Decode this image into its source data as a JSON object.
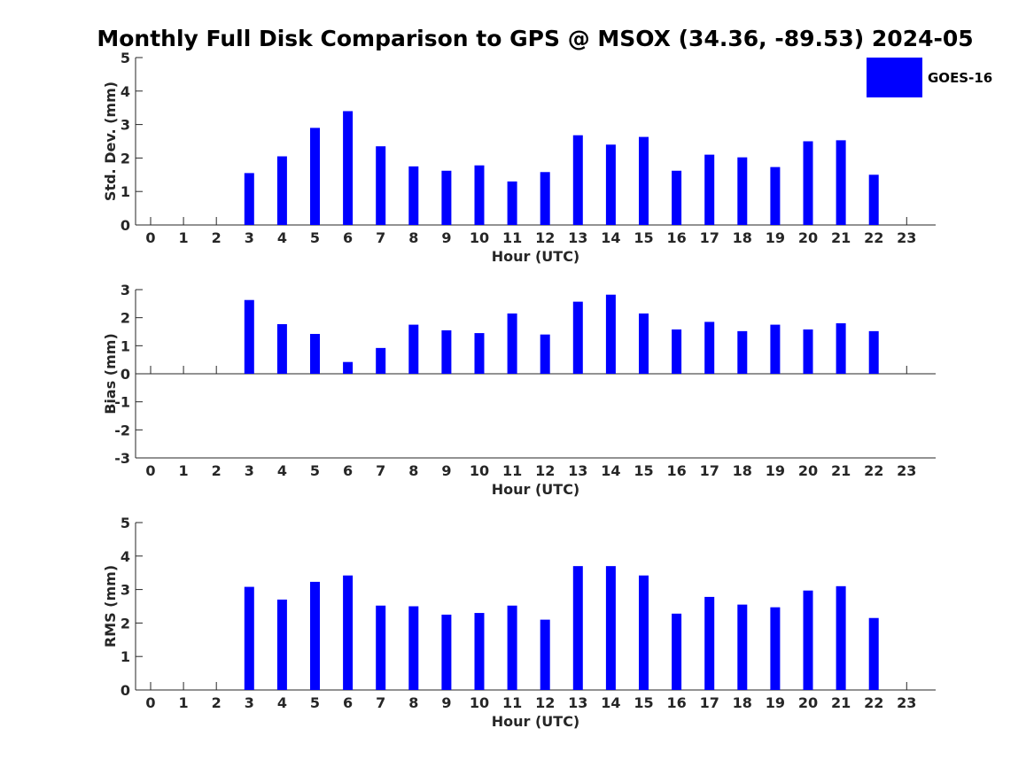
{
  "title": "Monthly Full Disk Comparison to GPS @ MSOX (34.36, -89.53) 2024-05",
  "legend": {
    "label": "GOES-16",
    "color": "#0000ff",
    "placement": "top-right"
  },
  "chart_data": [
    {
      "type": "bar",
      "name": "std",
      "ylabel": "Std. Dev. (mm)",
      "xlabel": "Hour (UTC)",
      "ylim": [
        0,
        5
      ],
      "yticks": [
        "0",
        "1",
        "2",
        "3",
        "4",
        "5"
      ],
      "categories": [
        "0",
        "1",
        "2",
        "3",
        "4",
        "5",
        "6",
        "7",
        "8",
        "9",
        "10",
        "11",
        "12",
        "13",
        "14",
        "15",
        "16",
        "17",
        "18",
        "19",
        "20",
        "21",
        "22",
        "23"
      ],
      "series": [
        {
          "name": "GOES-16",
          "values": [
            null,
            null,
            null,
            1.55,
            2.05,
            2.9,
            3.4,
            2.35,
            1.75,
            1.62,
            1.78,
            1.3,
            1.58,
            2.68,
            2.4,
            2.63,
            1.62,
            2.1,
            2.02,
            1.73,
            2.5,
            2.53,
            1.5,
            null
          ]
        }
      ],
      "grid": false
    },
    {
      "type": "bar",
      "name": "bias",
      "ylabel": "Bias (mm)",
      "xlabel": "Hour (UTC)",
      "ylim": [
        -3,
        3
      ],
      "yticks": [
        "-3",
        "-2",
        "-1",
        "0",
        "1",
        "2",
        "3"
      ],
      "categories": [
        "0",
        "1",
        "2",
        "3",
        "4",
        "5",
        "6",
        "7",
        "8",
        "9",
        "10",
        "11",
        "12",
        "13",
        "14",
        "15",
        "16",
        "17",
        "18",
        "19",
        "20",
        "21",
        "22",
        "23"
      ],
      "series": [
        {
          "name": "GOES-16",
          "values": [
            null,
            null,
            null,
            2.63,
            1.77,
            1.42,
            0.42,
            0.92,
            1.75,
            1.55,
            1.45,
            2.15,
            1.4,
            2.57,
            2.82,
            2.15,
            1.58,
            1.85,
            1.52,
            1.75,
            1.58,
            1.8,
            1.52,
            null
          ]
        }
      ],
      "grid": false
    },
    {
      "type": "bar",
      "name": "rms",
      "ylabel": "RMS (mm)",
      "xlabel": "Hour (UTC)",
      "ylim": [
        0,
        5
      ],
      "yticks": [
        "0",
        "1",
        "2",
        "3",
        "4",
        "5"
      ],
      "categories": [
        "0",
        "1",
        "2",
        "3",
        "4",
        "5",
        "6",
        "7",
        "8",
        "9",
        "10",
        "11",
        "12",
        "13",
        "14",
        "15",
        "16",
        "17",
        "18",
        "19",
        "20",
        "21",
        "22",
        "23"
      ],
      "series": [
        {
          "name": "GOES-16",
          "values": [
            null,
            null,
            null,
            3.08,
            2.7,
            3.23,
            3.42,
            2.52,
            2.5,
            2.25,
            2.3,
            2.52,
            2.1,
            3.7,
            3.7,
            3.42,
            2.28,
            2.78,
            2.55,
            2.47,
            2.97,
            3.1,
            2.15,
            null
          ]
        }
      ],
      "grid": false
    }
  ]
}
